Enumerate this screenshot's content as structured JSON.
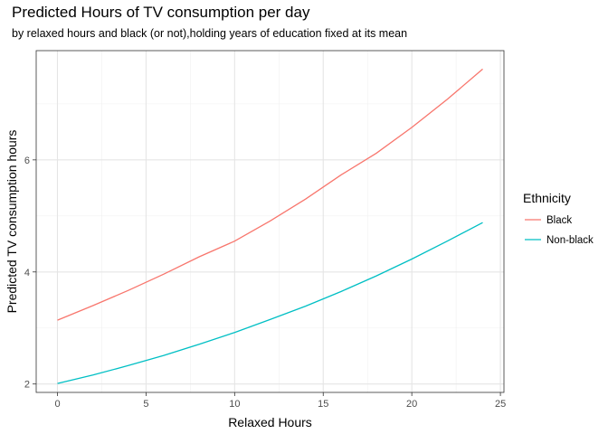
{
  "chart_data": {
    "type": "line",
    "title": "Predicted Hours of TV consumption per day",
    "subtitle": "by relaxed hours and black (or not),holding years of education fixed at its mean",
    "xlabel": "Relaxed Hours",
    "ylabel": "Predicted TV consumption hours",
    "xlim": [
      -1.2,
      25.2
    ],
    "ylim": [
      1.85,
      7.95
    ],
    "x_ticks": [
      0,
      5,
      10,
      15,
      20,
      25
    ],
    "y_ticks": [
      2,
      4,
      6
    ],
    "x_tick_labels": [
      "0",
      "5",
      "10",
      "15",
      "20",
      "25"
    ],
    "y_tick_labels": [
      "2",
      "4",
      "6"
    ],
    "grid": true,
    "legend": {
      "title": "Ethnicity",
      "position": "right"
    },
    "x": [
      0,
      2,
      4,
      6,
      8,
      10,
      12,
      14,
      16,
      18,
      20,
      22,
      24
    ],
    "series": [
      {
        "name": "Black",
        "color": "#F8766D",
        "values": [
          3.14,
          3.4,
          3.67,
          3.96,
          4.27,
          4.55,
          4.91,
          5.3,
          5.73,
          6.12,
          6.58,
          7.08,
          7.62
        ]
      },
      {
        "name": "Non-black",
        "color": "#00BFC4",
        "values": [
          2.01,
          2.16,
          2.33,
          2.51,
          2.71,
          2.92,
          3.15,
          3.39,
          3.65,
          3.93,
          4.23,
          4.55,
          4.88
        ]
      }
    ]
  }
}
